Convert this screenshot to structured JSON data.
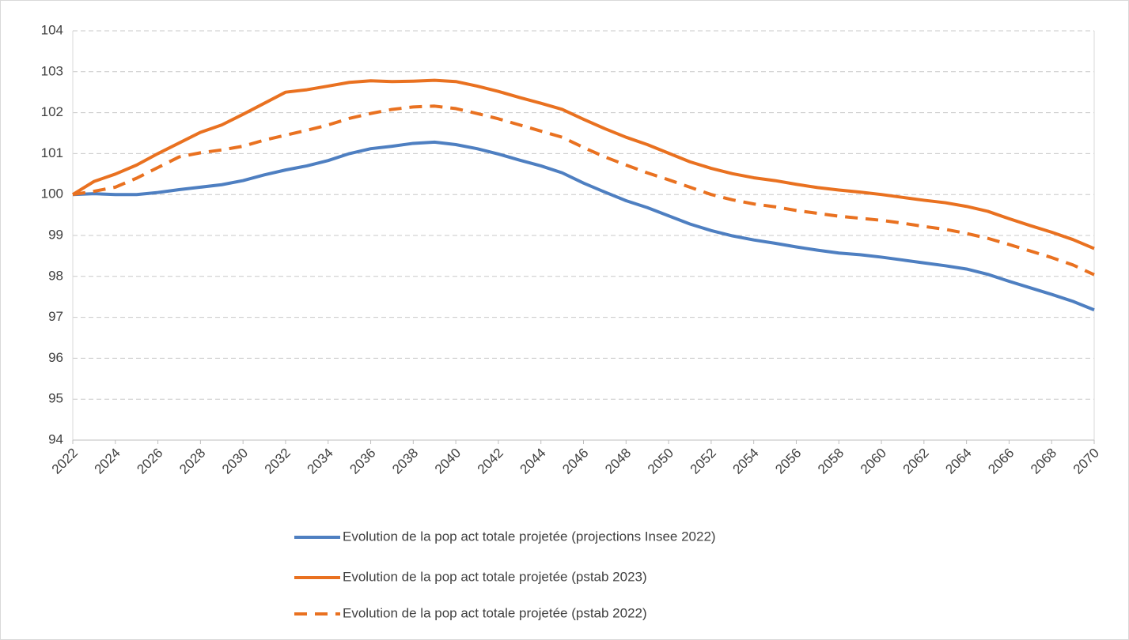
{
  "chart_data": {
    "type": "line",
    "x": [
      2022,
      2023,
      2024,
      2025,
      2026,
      2027,
      2028,
      2029,
      2030,
      2031,
      2032,
      2033,
      2034,
      2035,
      2036,
      2037,
      2038,
      2039,
      2040,
      2041,
      2042,
      2043,
      2044,
      2045,
      2046,
      2047,
      2048,
      2049,
      2050,
      2051,
      2052,
      2053,
      2054,
      2055,
      2056,
      2057,
      2058,
      2059,
      2060,
      2061,
      2062,
      2063,
      2064,
      2065,
      2066,
      2067,
      2068,
      2069,
      2070
    ],
    "xlim": [
      2022,
      2070
    ],
    "xticks": [
      2022,
      2024,
      2026,
      2028,
      2030,
      2032,
      2034,
      2036,
      2038,
      2040,
      2042,
      2044,
      2046,
      2048,
      2050,
      2052,
      2054,
      2056,
      2058,
      2060,
      2062,
      2064,
      2066,
      2068,
      2070
    ],
    "ylim": [
      94,
      104
    ],
    "yticks": [
      94,
      95,
      96,
      97,
      98,
      99,
      100,
      101,
      102,
      103,
      104
    ],
    "grid": true,
    "legend": "bottom",
    "series": [
      {
        "name": "Evolution de la pop act totale projetée (projections Insee 2022)",
        "color": "#4e7fc1",
        "dashed": false,
        "values": [
          100,
          100.02,
          100.0,
          100.0,
          100.05,
          100.12,
          100.18,
          100.24,
          100.34,
          100.48,
          100.6,
          100.7,
          100.83,
          101.0,
          101.12,
          101.18,
          101.25,
          101.28,
          101.22,
          101.12,
          100.99,
          100.84,
          100.7,
          100.53,
          100.28,
          100.06,
          99.85,
          99.68,
          99.48,
          99.28,
          99.12,
          98.99,
          98.89,
          98.81,
          98.72,
          98.64,
          98.57,
          98.53,
          98.47,
          98.4,
          98.33,
          98.26,
          98.18,
          98.05,
          97.88,
          97.72,
          97.56,
          97.39,
          97.18
        ]
      },
      {
        "name": "Evolution de la pop act totale projetée (pstab 2023)",
        "color": "#e97120",
        "dashed": false,
        "values": [
          100,
          100.32,
          100.5,
          100.72,
          101.0,
          101.26,
          101.52,
          101.7,
          101.96,
          102.23,
          102.5,
          102.56,
          102.65,
          102.74,
          102.78,
          102.76,
          102.77,
          102.79,
          102.76,
          102.65,
          102.52,
          102.37,
          102.23,
          102.08,
          101.84,
          101.61,
          101.4,
          101.22,
          101.01,
          100.8,
          100.64,
          100.51,
          100.41,
          100.34,
          100.25,
          100.17,
          100.11,
          100.06,
          100.0,
          99.93,
          99.86,
          99.8,
          99.71,
          99.59,
          99.41,
          99.24,
          99.08,
          98.9,
          98.68
        ]
      },
      {
        "name": "Evolution de la pop act totale projetée (pstab 2022)",
        "color": "#e97120",
        "dashed": true,
        "values": [
          100,
          100.08,
          100.18,
          100.4,
          100.66,
          100.92,
          101.02,
          101.09,
          101.18,
          101.33,
          101.45,
          101.57,
          101.7,
          101.86,
          101.98,
          102.08,
          102.14,
          102.16,
          102.1,
          101.98,
          101.85,
          101.7,
          101.55,
          101.4,
          101.15,
          100.92,
          100.72,
          100.53,
          100.36,
          100.18,
          100.0,
          99.87,
          99.77,
          99.7,
          99.61,
          99.54,
          99.47,
          99.42,
          99.37,
          99.3,
          99.22,
          99.15,
          99.05,
          98.93,
          98.78,
          98.62,
          98.46,
          98.28,
          98.04
        ]
      }
    ]
  }
}
